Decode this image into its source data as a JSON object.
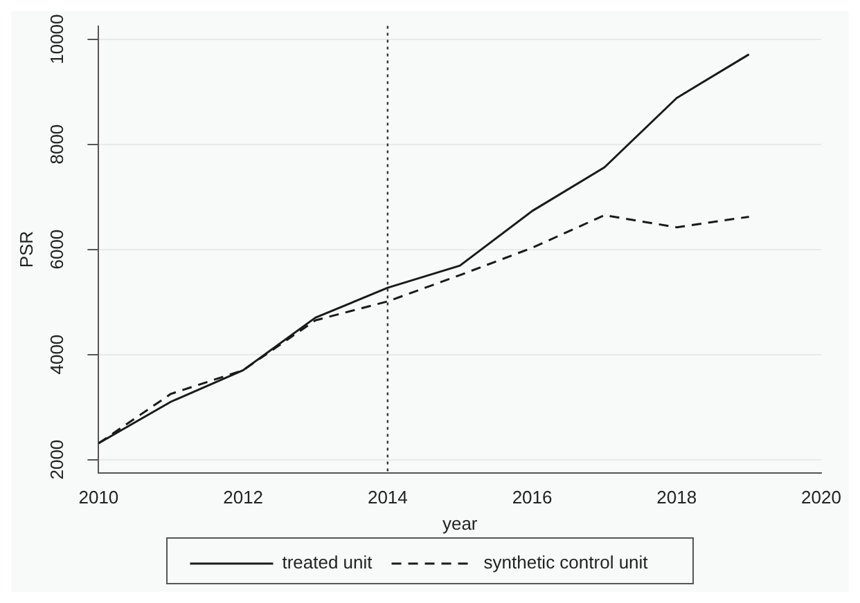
{
  "chart_data": {
    "type": "line",
    "xlabel": "year",
    "ylabel": "PSR",
    "x": [
      2010,
      2011,
      2012,
      2013,
      2014,
      2015,
      2016,
      2017,
      2018,
      2019
    ],
    "series": [
      {
        "name": "treated unit",
        "color": "#1a1a1a",
        "line_style": "solid",
        "values": [
          2310,
          3100,
          3700,
          4700,
          5270,
          5690,
          6730,
          7560,
          8880,
          9710
        ]
      },
      {
        "name": "synthetic control unit",
        "color": "#1a1a1a",
        "line_style": "dashed",
        "values": [
          2310,
          3250,
          3700,
          4650,
          5010,
          5510,
          6030,
          6650,
          6420,
          6620
        ]
      }
    ],
    "xlim": [
      2010,
      2020
    ],
    "xticks": [
      2010,
      2012,
      2014,
      2016,
      2018,
      2020
    ],
    "ylim": [
      1750,
      10250
    ],
    "yticks": [
      2000,
      4000,
      6000,
      8000,
      10000
    ],
    "grid": "y",
    "legend": "bottom",
    "marker": "none",
    "ref_lines": [
      {
        "axis": "x",
        "value": 2014,
        "color": "#333333",
        "line_style": "dotted"
      }
    ]
  }
}
